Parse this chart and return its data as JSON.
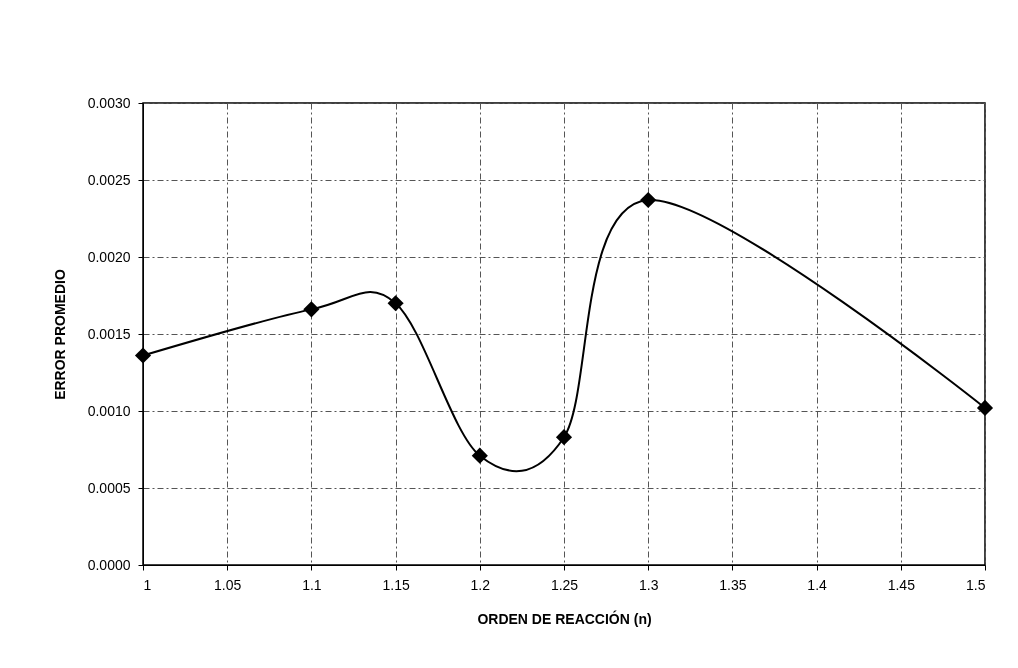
{
  "chart_data": {
    "type": "line",
    "xlabel": "ORDEN DE REACCIÓN (n)",
    "ylabel": "ERROR PROMEDIO",
    "x": [
      1,
      1.1,
      1.15,
      1.2,
      1.25,
      1.3,
      1.5
    ],
    "series": [
      {
        "color": "#000000",
        "values": [
          0.00136,
          0.00166,
          0.0017,
          0.00071,
          0.00083,
          0.00237,
          0.00102
        ]
      }
    ],
    "xlim": [
      1,
      1.5
    ],
    "xticks": [
      1,
      1.05,
      1.1,
      1.15,
      1.2,
      1.25,
      1.3,
      1.35,
      1.4,
      1.45,
      1.5
    ],
    "ylim": [
      0,
      0.003
    ],
    "yticks": [
      {
        "value": 0,
        "label": "0.0000"
      },
      {
        "value": 0.0005,
        "label": "0.0005"
      },
      {
        "value": 0.001,
        "label": "0.0010"
      },
      {
        "value": 0.0015,
        "label": "0.0015"
      },
      {
        "value": 0.002,
        "label": "0.0020"
      },
      {
        "value": 0.0025,
        "label": "0.0025"
      },
      {
        "value": 0.003,
        "label": "0.0030"
      }
    ],
    "grid": true,
    "marker": "diamond",
    "line_style": "solid",
    "legend": false
  }
}
